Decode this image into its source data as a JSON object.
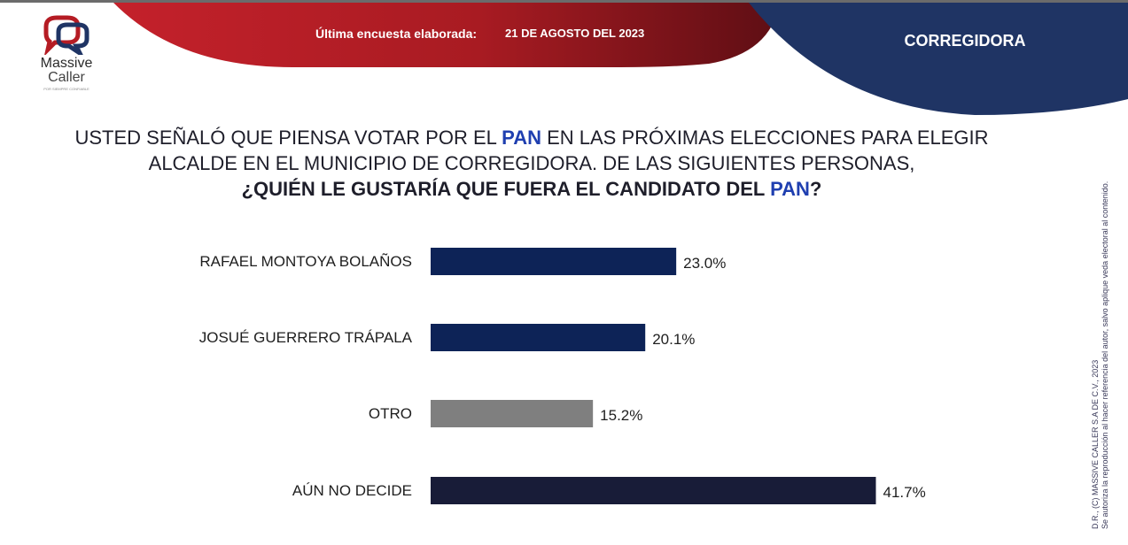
{
  "brand": {
    "name_line1": "Massive",
    "name_line2": "Caller",
    "tagline": "POR SIEMPRE CONFIABLE"
  },
  "header": {
    "survey_label": "Última encuesta elaborada:",
    "survey_date": "21 DE AGOSTO DEL 2023",
    "region": "CORREGIDORA"
  },
  "question": {
    "line1_pre": "USTED SEÑALÓ QUE PIENSA VOTAR POR EL ",
    "party": "PAN",
    "line1_post": " EN LAS PRÓXIMAS ELECCIONES PARA ELEGIR",
    "line2": "ALCALDE EN EL MUNICIPIO DE CORREGIDORA. DE LAS SIGUIENTES PERSONAS,",
    "line3_pre": "¿QUIÉN LE GUSTARÍA QUE FUERA EL CANDIDATO DEL ",
    "line3_post": "?"
  },
  "chart_data": {
    "type": "bar",
    "orientation": "horizontal",
    "categories": [
      "RAFAEL MONTOYA BOLAÑOS",
      "JOSUÉ GUERRERO TRÁPALA",
      "OTRO",
      "AÚN NO DECIDE"
    ],
    "values": [
      23.0,
      20.1,
      15.2,
      41.7
    ],
    "value_labels": [
      "23.0%",
      "20.1%",
      "15.2%",
      "41.7%"
    ],
    "colors": [
      "#0d2357",
      "#0d2357",
      "#7f7f7f",
      "#181c38"
    ],
    "xlim": [
      0,
      45
    ],
    "grid": false,
    "legend": "none"
  },
  "footer": {
    "line1": "D.R., (C) MASSIVE CALLER S.A DE C.V., 2023",
    "line2": "Se autoriza la reproducción al hacer referencia del autor, salvo aplique veda electoral al contenido."
  },
  "colors": {
    "red_band": "#b51c24",
    "navy_band": "#1f3464",
    "highlight_blue": "#1f3fb0"
  }
}
